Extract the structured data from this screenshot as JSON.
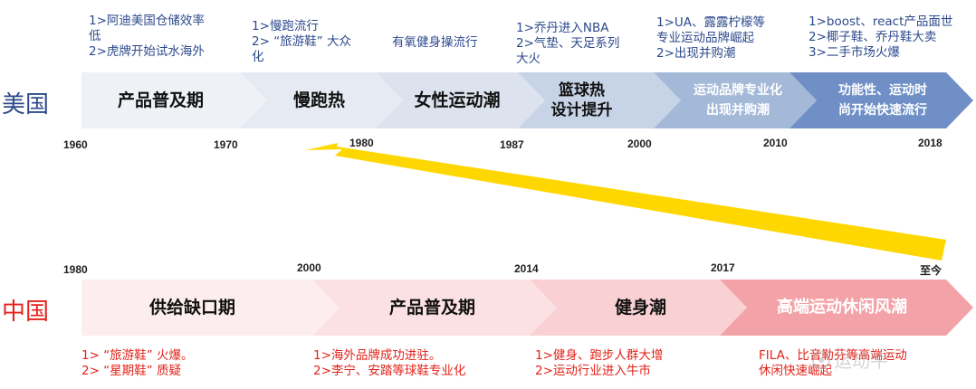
{
  "us": {
    "country": "美国",
    "notes": [
      "1>阿迪美国仓储效率\n低\n2>虎牌开始试水海外",
      "1>慢跑流行\n2> “旅游鞋” 大众\n化",
      "有氧健身操流行",
      "1>乔丹进入NBA\n2>气垫、天足系列\n大火",
      "1>UA、露露柠檬等\n专业运动品牌崛起\n2>出现并购潮",
      "1>boost、react产品面世\n2>椰子鞋、乔丹鞋大卖\n3>二手市场火爆"
    ],
    "phases": [
      "产品普及期",
      "慢跑热",
      "女性运动潮",
      "篮球热\n设计提升",
      "运动品牌专业化\n出现并购潮",
      "功能性、运动时\n尚开始快速流行"
    ],
    "years": [
      "1960",
      "1970",
      "1980",
      "1987",
      "2000",
      "2010",
      "2018"
    ]
  },
  "cn": {
    "country": "中国",
    "years": [
      "1980",
      "2000",
      "2014",
      "2017",
      "至今"
    ],
    "phases": [
      "供给缺口期",
      "产品普及期",
      "健身潮",
      "高端运动休闲风潮"
    ],
    "notes": [
      "1> “旅游鞋” 火爆。\n2> “星期鞋” 质疑",
      "1>海外品牌成功进驻。\n2>李宁、安踏等球鞋专业化",
      "1>健身、跑步人群大增\n2>运动行业进入牛市",
      "FILA、比音勒芬等高端运动\n休闲快速崛起"
    ]
  },
  "watermark": "运动牛",
  "colors": {
    "us_text": "#2E4A8C",
    "cn_text": "#E2231A",
    "arrow": "#FFD700",
    "us_band": [
      "#EEF1F6",
      "#E6EBF3",
      "#DCE3EF",
      "#C7D3E6",
      "#A4B8D8",
      "#6F8FC6"
    ],
    "cn_band": [
      "#FDEDEE",
      "#FBE1E3",
      "#F9D0D3",
      "#F3A3A8"
    ]
  }
}
